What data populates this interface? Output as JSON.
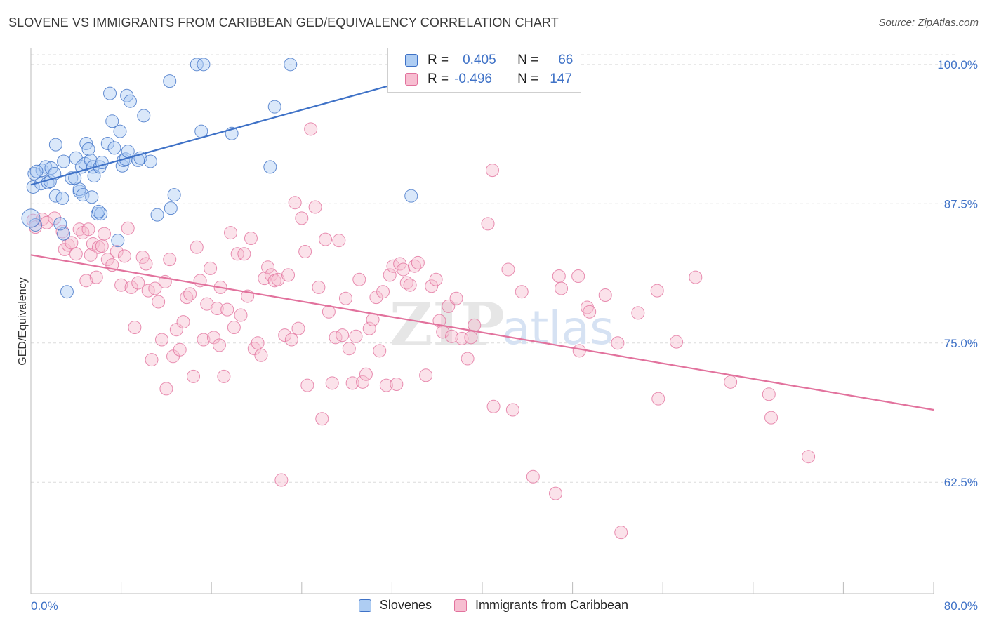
{
  "title": "SLOVENE VS IMMIGRANTS FROM CARIBBEAN GED/EQUIVALENCY CORRELATION CHART",
  "source": "Source: ZipAtlas.com",
  "watermark": "ZIPatlas",
  "legend": {
    "rows": [
      {
        "r_label": "R =",
        "r_value": "0.405",
        "n_label": "N =",
        "n_value": "66",
        "color": "#8fb8ea"
      },
      {
        "r_label": "R =",
        "r_value": "-0.496",
        "n_label": "N =",
        "n_value": "147",
        "color": "#f1a5bf"
      }
    ]
  },
  "bottom_legend": [
    {
      "label": "Slovenes",
      "color": "#8fb8ea"
    },
    {
      "label": "Immigrants from Caribbean",
      "color": "#f1a5bf"
    }
  ],
  "colors": {
    "blue": "#3f72c7",
    "blue_fill": "#aecdf3",
    "pink": "#e2729d",
    "pink_fill": "#f7bed1",
    "grid": "#dcdcdc"
  },
  "chart_data": {
    "type": "scatter",
    "title": "SLOVENE VS IMMIGRANTS FROM CARIBBEAN GED/EQUIVALENCY CORRELATION CHART",
    "xlabel": "",
    "ylabel": "GED/Equivalency",
    "xlim": [
      0,
      80
    ],
    "ylim": [
      52.5,
      101.5
    ],
    "x_tick_labels": [
      "0.0%",
      "80.0%"
    ],
    "y_ticks": [
      100,
      87.5,
      75,
      62.5
    ],
    "y_tick_labels": [
      "100.0%",
      "87.5%",
      "75.0%",
      "62.5%"
    ],
    "grid": true,
    "legend_position": "top-center",
    "series": [
      {
        "name": "Slovenes",
        "color": "#3f72c7",
        "trend": {
          "x": [
            0,
            40
          ],
          "y": [
            89.2,
            100.4
          ]
        },
        "points": [
          [
            0.2,
            89.0
          ],
          [
            0.3,
            90.2
          ],
          [
            0.9,
            89.3
          ],
          [
            1.0,
            90.5
          ],
          [
            1.3,
            90.8
          ],
          [
            1.5,
            89.4
          ],
          [
            1.8,
            90.7
          ],
          [
            1.7,
            89.5
          ],
          [
            2.1,
            90.2
          ],
          [
            2.2,
            88.2
          ],
          [
            2.8,
            88.0
          ],
          [
            2.2,
            92.8
          ],
          [
            2.9,
            91.3
          ],
          [
            3.6,
            89.8
          ],
          [
            4.0,
            91.6
          ],
          [
            4.3,
            88.6
          ],
          [
            4.3,
            88.8
          ],
          [
            4.5,
            90.8
          ],
          [
            4.6,
            88.3
          ],
          [
            4.8,
            91.1
          ],
          [
            4.9,
            92.9
          ],
          [
            5.1,
            92.4
          ],
          [
            5.3,
            91.4
          ],
          [
            5.5,
            90.8
          ],
          [
            5.6,
            90.0
          ],
          [
            5.4,
            88.1
          ],
          [
            5.9,
            86.6
          ],
          [
            6.2,
            86.6
          ],
          [
            6.1,
            90.8
          ],
          [
            6.3,
            91.2
          ],
          [
            6.8,
            92.9
          ],
          [
            7.0,
            97.4
          ],
          [
            7.2,
            94.9
          ],
          [
            7.4,
            92.5
          ],
          [
            7.7,
            84.2
          ],
          [
            7.9,
            94.0
          ],
          [
            8.1,
            90.9
          ],
          [
            8.2,
            91.4
          ],
          [
            8.4,
            91.5
          ],
          [
            8.5,
            97.2
          ],
          [
            8.6,
            92.2
          ],
          [
            8.8,
            96.7
          ],
          [
            9.5,
            91.4
          ],
          [
            9.7,
            91.6
          ],
          [
            10.0,
            95.4
          ],
          [
            10.6,
            91.3
          ],
          [
            11.2,
            86.5
          ],
          [
            12.3,
            98.5
          ],
          [
            12.4,
            87.1
          ],
          [
            12.7,
            88.3
          ],
          [
            14.7,
            100.0
          ],
          [
            15.1,
            94.0
          ],
          [
            15.3,
            100.0
          ],
          [
            17.8,
            93.8
          ],
          [
            21.2,
            90.8
          ],
          [
            21.6,
            96.2
          ],
          [
            23.0,
            100.0
          ],
          [
            33.7,
            88.2
          ],
          [
            3.2,
            79.6
          ],
          [
            2.9,
            84.8
          ],
          [
            2.6,
            85.7
          ],
          [
            0.5,
            90.4
          ],
          [
            0.4,
            85.6
          ],
          [
            6.0,
            86.8
          ],
          [
            3.9,
            89.8
          ],
          [
            0.0,
            86.2
          ]
        ]
      },
      {
        "name": "Immigrants from Caribbean",
        "color": "#e2729d",
        "trend": {
          "x": [
            0,
            80
          ],
          "y": [
            82.9,
            69.0
          ]
        },
        "points": [
          [
            0.2,
            86.0
          ],
          [
            0.4,
            85.4
          ],
          [
            1.0,
            86.1
          ],
          [
            1.4,
            85.8
          ],
          [
            2.1,
            86.2
          ],
          [
            2.8,
            85.0
          ],
          [
            3.0,
            83.4
          ],
          [
            3.3,
            83.8
          ],
          [
            3.6,
            84.0
          ],
          [
            4.0,
            83.0
          ],
          [
            4.3,
            85.2
          ],
          [
            4.6,
            84.9
          ],
          [
            4.9,
            80.6
          ],
          [
            5.1,
            85.2
          ],
          [
            5.3,
            82.9
          ],
          [
            5.5,
            83.9
          ],
          [
            6.0,
            83.6
          ],
          [
            6.3,
            83.7
          ],
          [
            6.5,
            84.8
          ],
          [
            6.8,
            82.5
          ],
          [
            7.2,
            82.0
          ],
          [
            7.6,
            83.2
          ],
          [
            8.0,
            80.2
          ],
          [
            8.3,
            82.8
          ],
          [
            8.6,
            85.3
          ],
          [
            8.9,
            80.0
          ],
          [
            9.2,
            76.4
          ],
          [
            9.5,
            80.4
          ],
          [
            9.9,
            82.7
          ],
          [
            10.2,
            82.1
          ],
          [
            10.4,
            79.7
          ],
          [
            10.7,
            73.5
          ],
          [
            11.0,
            79.9
          ],
          [
            11.3,
            78.7
          ],
          [
            11.6,
            75.3
          ],
          [
            11.9,
            80.5
          ],
          [
            12.3,
            82.5
          ],
          [
            12.6,
            73.8
          ],
          [
            12.9,
            76.2
          ],
          [
            13.2,
            74.4
          ],
          [
            13.5,
            76.9
          ],
          [
            13.8,
            79.1
          ],
          [
            14.1,
            79.4
          ],
          [
            14.4,
            72.0
          ],
          [
            14.7,
            83.6
          ],
          [
            15.0,
            80.6
          ],
          [
            15.3,
            75.3
          ],
          [
            15.6,
            78.5
          ],
          [
            15.9,
            81.7
          ],
          [
            16.2,
            75.5
          ],
          [
            16.5,
            78.1
          ],
          [
            16.8,
            80.0
          ],
          [
            17.1,
            72.0
          ],
          [
            17.4,
            78.0
          ],
          [
            17.7,
            84.9
          ],
          [
            18.0,
            76.4
          ],
          [
            18.3,
            83.0
          ],
          [
            18.6,
            77.5
          ],
          [
            18.9,
            83.0
          ],
          [
            19.2,
            79.2
          ],
          [
            19.5,
            84.4
          ],
          [
            19.8,
            74.5
          ],
          [
            20.1,
            75.0
          ],
          [
            20.4,
            73.9
          ],
          [
            20.7,
            80.8
          ],
          [
            21.0,
            81.8
          ],
          [
            21.3,
            81.1
          ],
          [
            21.6,
            80.6
          ],
          [
            21.9,
            80.7
          ],
          [
            22.2,
            62.7
          ],
          [
            22.5,
            75.7
          ],
          [
            22.8,
            81.1
          ],
          [
            23.1,
            75.3
          ],
          [
            23.4,
            87.6
          ],
          [
            23.7,
            76.3
          ],
          [
            24.0,
            86.2
          ],
          [
            24.3,
            83.2
          ],
          [
            24.5,
            71.2
          ],
          [
            25.2,
            87.2
          ],
          [
            25.5,
            80.0
          ],
          [
            25.8,
            68.2
          ],
          [
            26.1,
            84.3
          ],
          [
            26.4,
            77.8
          ],
          [
            26.7,
            71.4
          ],
          [
            27.0,
            75.5
          ],
          [
            27.3,
            84.2
          ],
          [
            27.6,
            75.7
          ],
          [
            27.9,
            79.0
          ],
          [
            28.2,
            74.5
          ],
          [
            28.5,
            71.4
          ],
          [
            28.8,
            75.6
          ],
          [
            29.1,
            80.7
          ],
          [
            29.4,
            71.5
          ],
          [
            29.7,
            72.2
          ],
          [
            30.0,
            76.3
          ],
          [
            30.3,
            77.1
          ],
          [
            30.6,
            79.1
          ],
          [
            30.9,
            74.3
          ],
          [
            31.2,
            79.6
          ],
          [
            31.5,
            71.2
          ],
          [
            31.8,
            81.1
          ],
          [
            32.1,
            81.9
          ],
          [
            32.4,
            71.3
          ],
          [
            32.7,
            82.1
          ],
          [
            33.0,
            81.6
          ],
          [
            33.3,
            80.4
          ],
          [
            33.6,
            80.2
          ],
          [
            34.0,
            81.9
          ],
          [
            34.3,
            82.2
          ],
          [
            35.0,
            72.1
          ],
          [
            35.5,
            80.1
          ],
          [
            35.9,
            80.7
          ],
          [
            36.2,
            77.0
          ],
          [
            36.5,
            76.0
          ],
          [
            37.0,
            78.3
          ],
          [
            37.3,
            75.6
          ],
          [
            37.7,
            79.0
          ],
          [
            38.2,
            75.4
          ],
          [
            38.7,
            73.6
          ],
          [
            39.0,
            75.5
          ],
          [
            39.3,
            76.6
          ],
          [
            40.5,
            85.7
          ],
          [
            41.0,
            69.3
          ],
          [
            40.9,
            90.5
          ],
          [
            42.3,
            81.6
          ],
          [
            42.7,
            69.0
          ],
          [
            43.5,
            79.6
          ],
          [
            44.5,
            63.0
          ],
          [
            46.5,
            61.5
          ],
          [
            46.8,
            81.0
          ],
          [
            47.0,
            79.9
          ],
          [
            48.5,
            81.0
          ],
          [
            48.6,
            74.3
          ],
          [
            49.3,
            78.2
          ],
          [
            49.5,
            77.8
          ],
          [
            50.9,
            79.3
          ],
          [
            52.0,
            75.0
          ],
          [
            52.3,
            58.0
          ],
          [
            53.8,
            77.7
          ],
          [
            55.6,
            70.0
          ],
          [
            55.5,
            79.7
          ],
          [
            57.2,
            75.1
          ],
          [
            58.9,
            80.9
          ],
          [
            62.0,
            71.5
          ],
          [
            65.4,
            70.4
          ],
          [
            65.6,
            68.3
          ],
          [
            68.9,
            64.8
          ],
          [
            24.8,
            94.2
          ],
          [
            16.7,
            74.8
          ],
          [
            12.0,
            70.9
          ],
          [
            5.8,
            80.9
          ]
        ]
      }
    ]
  }
}
